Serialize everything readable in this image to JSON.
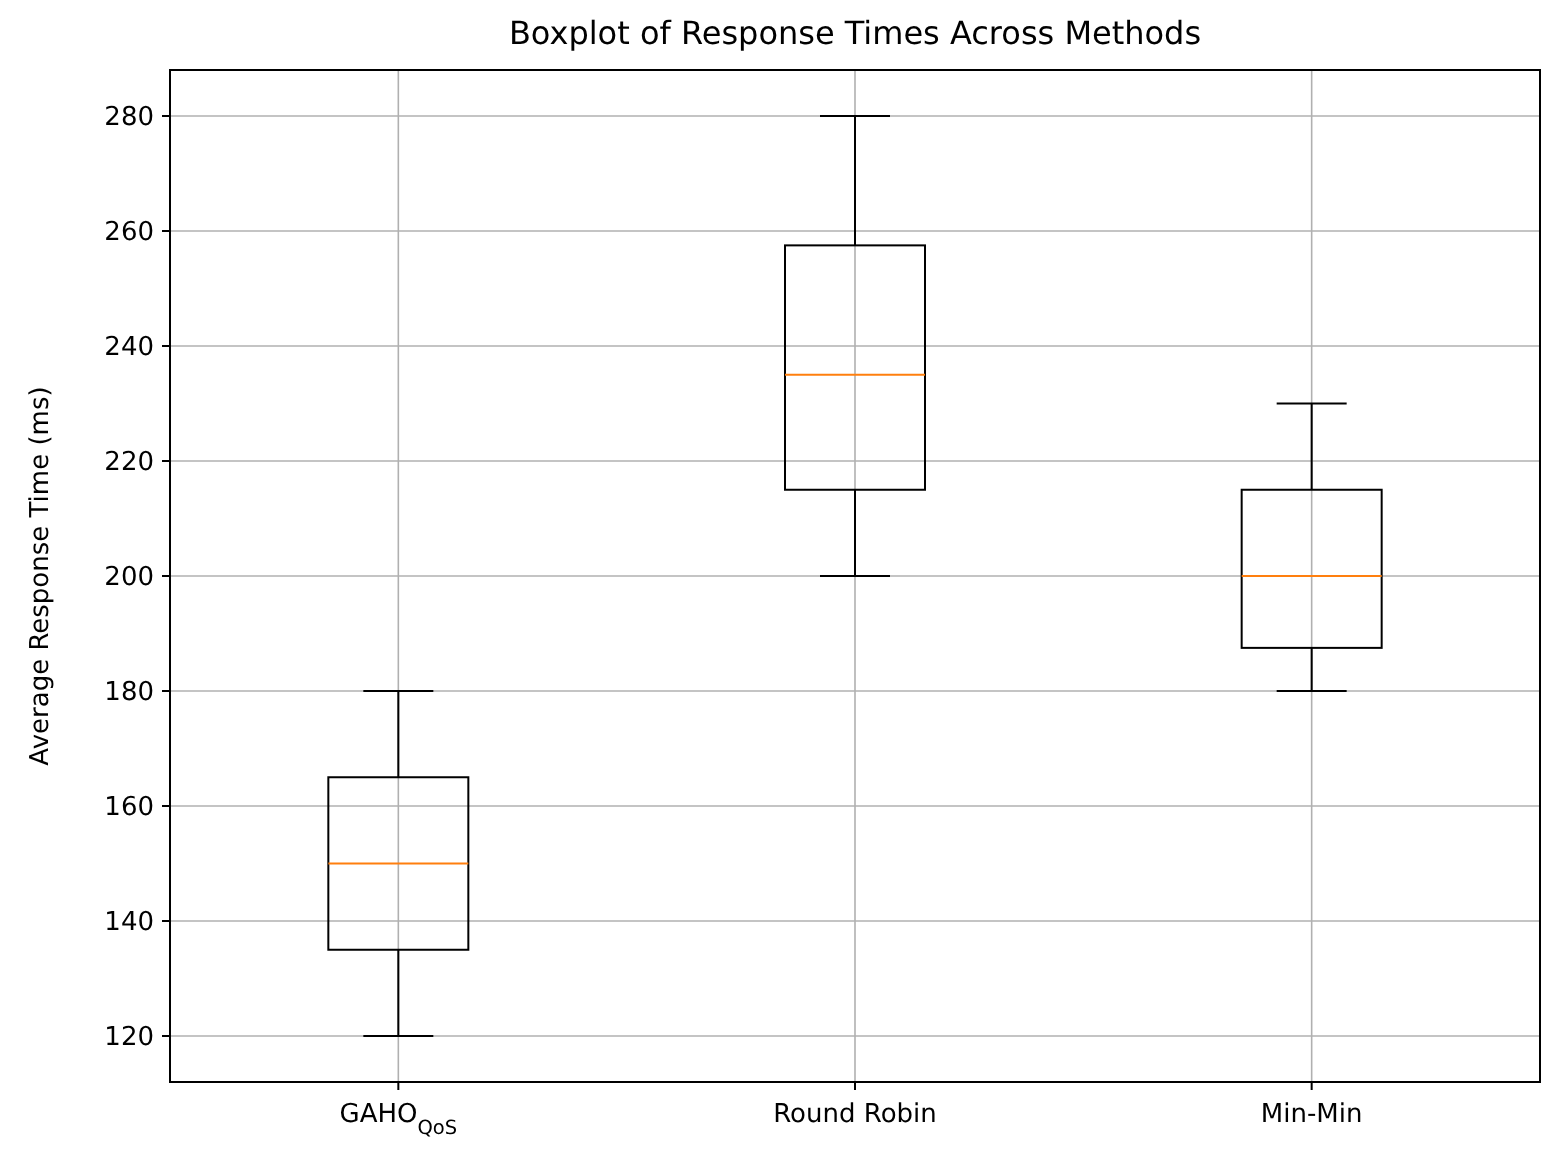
{
  "chart_data": {
    "type": "box",
    "title": "Boxplot of Response Times Across Methods",
    "ylabel": "Average Response Time (ms)",
    "categories": [
      "GAHO$_{QoS}$",
      "Round Robin",
      "Min-Min"
    ],
    "boxes": [
      {
        "low": 120,
        "q1": 135,
        "median": 150,
        "q3": 165,
        "high": 180
      },
      {
        "low": 200,
        "q1": 215,
        "median": 235,
        "q3": 257.5,
        "high": 280
      },
      {
        "low": 180,
        "q1": 187.5,
        "median": 200,
        "q3": 215,
        "high": 230
      }
    ],
    "ylim": [
      112,
      288
    ],
    "yticks": [
      120,
      140,
      160,
      180,
      200,
      220,
      240,
      260,
      280
    ],
    "grid": true
  }
}
